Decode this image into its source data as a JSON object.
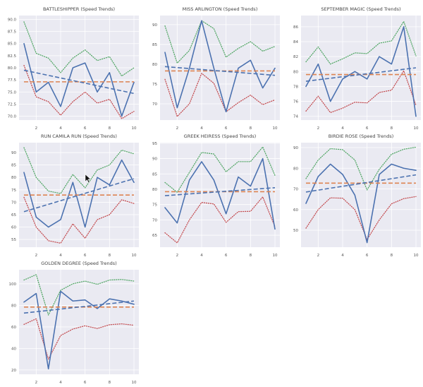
{
  "colors": {
    "speed": "#4c72b0",
    "mean": "#dd8452",
    "upper": "#55a868",
    "lower": "#c44e52",
    "trend": "#4c72b0",
    "plot_bg": "#eaeaf2",
    "grid": "#ffffff"
  },
  "chart_data": [
    {
      "type": "line",
      "title": "BATTLESHIPPER (Speed Trends)",
      "x": [
        1,
        2,
        3,
        4,
        5,
        6,
        7,
        8,
        9,
        10
      ],
      "xticks": [
        2,
        4,
        6,
        8,
        10
      ],
      "yticks": [
        "70.0",
        "72.5",
        "75.0",
        "77.5",
        "80.0",
        "82.5",
        "85.0",
        "87.5",
        "90.0"
      ],
      "ytick_values": [
        70,
        72.5,
        75,
        77.5,
        80,
        82.5,
        85,
        87.5,
        90
      ],
      "ylim": [
        69.2,
        90.8
      ],
      "series": [
        {
          "name": "speed",
          "values": [
            85,
            75,
            77,
            72,
            80,
            81,
            75,
            79,
            70,
            77
          ]
        },
        {
          "name": "upper",
          "values": [
            89.5,
            83,
            82,
            79,
            82,
            83.7,
            81.5,
            82.3,
            78.3,
            80
          ]
        },
        {
          "name": "lower",
          "values": [
            80.5,
            74,
            73,
            70.2,
            73,
            75,
            72.7,
            73.5,
            69.5,
            71
          ]
        }
      ],
      "mean": 77.1,
      "trend": [
        79.5,
        74.7
      ]
    },
    {
      "type": "line",
      "title": "MISS ARLINGTON (Speed Trends)",
      "x": [
        1,
        2,
        3,
        4,
        5,
        6,
        7,
        8,
        9,
        10
      ],
      "xticks": [
        2,
        4,
        6,
        8,
        10
      ],
      "yticks": [
        "70",
        "75",
        "80",
        "85",
        "90"
      ],
      "ytick_values": [
        70,
        75,
        80,
        85,
        90
      ],
      "ylim": [
        65.9,
        92.3
      ],
      "series": [
        {
          "name": "speed",
          "values": [
            83,
            69,
            79,
            91,
            79,
            68,
            79,
            81,
            74,
            79
          ]
        },
        {
          "name": "upper",
          "values": [
            89.7,
            80.3,
            83.5,
            91,
            89,
            81.8,
            84,
            85.7,
            83.3,
            84.5
          ]
        },
        {
          "name": "lower",
          "values": [
            76.2,
            66.8,
            70,
            77.7,
            75.2,
            68,
            70.3,
            72.2,
            69.8,
            71
          ]
        }
      ],
      "mean": 78.3,
      "trend": [
        79.4,
        77.2
      ]
    },
    {
      "type": "line",
      "title": "SEPTEMBER MAGIC (Speed Trends)",
      "x": [
        1,
        2,
        3,
        4,
        5,
        6,
        7,
        8,
        9,
        10
      ],
      "xticks": [
        2,
        4,
        6,
        8,
        10
      ],
      "yticks": [
        "74",
        "76",
        "78",
        "80",
        "82",
        "84",
        "86"
      ],
      "ytick_values": [
        74,
        76,
        78,
        80,
        82,
        84,
        86
      ],
      "ylim": [
        73.5,
        87.5
      ],
      "series": [
        {
          "name": "speed",
          "values": [
            78,
            81,
            76,
            79,
            80,
            79,
            82,
            81,
            86,
            74
          ]
        },
        {
          "name": "upper",
          "values": [
            81.3,
            83.3,
            81,
            81.7,
            82.5,
            82.4,
            83.8,
            84.1,
            86.7,
            82.1
          ]
        },
        {
          "name": "lower",
          "values": [
            74.7,
            76.7,
            74.5,
            75.1,
            75.9,
            75.8,
            77.2,
            77.5,
            80.1,
            75.5
          ]
        }
      ],
      "mean": 79.6,
      "trend": [
        78.7,
        80.5
      ]
    },
    {
      "type": "line",
      "title": "RUN CAMILA RUN (Speed Trends)",
      "x": [
        1,
        2,
        3,
        4,
        5,
        6,
        7,
        8,
        9,
        10
      ],
      "xticks": [
        2,
        4,
        6,
        8,
        10
      ],
      "yticks": [
        "55",
        "60",
        "65",
        "70",
        "75",
        "80",
        "85",
        "90"
      ],
      "ytick_values": [
        55,
        60,
        65,
        70,
        75,
        80,
        85,
        90
      ],
      "ylim": [
        51.9,
        94
      ],
      "series": [
        {
          "name": "speed",
          "values": [
            82,
            64,
            60,
            63,
            78,
            60,
            80,
            77,
            87,
            78
          ]
        },
        {
          "name": "upper",
          "values": [
            92,
            80,
            74.5,
            73.5,
            81.2,
            75.8,
            83,
            85,
            91,
            89.5
          ]
        },
        {
          "name": "lower",
          "values": [
            72,
            60,
            54.5,
            53.5,
            61.3,
            55.5,
            63,
            65,
            71,
            69.5
          ]
        }
      ],
      "mean": 72.9,
      "trend": [
        66.2,
        79.5
      ]
    },
    {
      "type": "line",
      "title": "GREEK HEIRESS (Speed Trends)",
      "x": [
        1,
        2,
        3,
        4,
        5,
        6,
        7,
        8,
        9,
        10
      ],
      "xticks": [
        2,
        4,
        6,
        8,
        10
      ],
      "yticks": [
        "65",
        "70",
        "75",
        "80",
        "85",
        "90",
        "95"
      ],
      "ytick_values": [
        65,
        70,
        75,
        80,
        85,
        90,
        95
      ],
      "ylim": [
        61.1,
        95.2
      ],
      "series": [
        {
          "name": "speed",
          "values": [
            74,
            69,
            83,
            89,
            83,
            72,
            84,
            81,
            90,
            67
          ]
        },
        {
          "name": "upper",
          "values": [
            82.2,
            79,
            85.5,
            92,
            91.5,
            85.7,
            89,
            89,
            93.8,
            84.5
          ]
        },
        {
          "name": "lower",
          "values": [
            65.8,
            62.5,
            70,
            75.7,
            75.2,
            69.2,
            72.7,
            72.8,
            77.5,
            67.8
          ]
        }
      ],
      "mean": 79.2,
      "trend": [
        77.9,
        80.5
      ]
    },
    {
      "type": "line",
      "title": "BIRDIE ROSE (Speed Trends)",
      "x": [
        1,
        2,
        3,
        4,
        5,
        6,
        7,
        8,
        9,
        10
      ],
      "xticks": [
        2,
        4,
        6,
        8,
        10
      ],
      "yticks": [
        "50",
        "60",
        "70",
        "80",
        "90"
      ],
      "ytick_values": [
        50,
        60,
        70,
        80,
        90
      ],
      "ylim": [
        41.8,
        92.4
      ],
      "series": [
        {
          "name": "speed",
          "values": [
            63,
            76,
            82,
            77,
            67,
            44,
            77,
            82,
            80,
            79
          ]
        },
        {
          "name": "upper",
          "values": [
            75,
            84,
            89.5,
            89,
            84,
            69.5,
            79.5,
            86.8,
            89.2,
            90.2
          ]
        },
        {
          "name": "lower",
          "values": [
            51,
            60,
            65.7,
            65.5,
            60,
            45.5,
            55,
            62.8,
            65.3,
            66.3
          ]
        }
      ],
      "mean": 72.8,
      "trend": [
        68.5,
        76.8
      ]
    },
    {
      "type": "line",
      "title": "GOLDEN DEGREE (Speed Trends)",
      "x": [
        1,
        2,
        3,
        4,
        5,
        6,
        7,
        8,
        9,
        10
      ],
      "xticks": [
        2,
        4,
        6,
        8,
        10
      ],
      "yticks": [
        "20",
        "40",
        "60",
        "80",
        "100"
      ],
      "ytick_values": [
        20,
        40,
        60,
        80,
        100
      ],
      "ylim": [
        16,
        113
      ],
      "series": [
        {
          "name": "speed",
          "values": [
            83,
            91,
            21,
            93,
            84,
            85,
            77,
            86,
            84,
            81
          ]
        },
        {
          "name": "upper",
          "values": [
            103.5,
            108.5,
            71,
            94,
            100,
            102.5,
            99.5,
            103.5,
            104,
            102.5
          ]
        },
        {
          "name": "lower",
          "values": [
            62.3,
            67.5,
            30,
            52,
            58,
            61,
            58.5,
            62,
            62.8,
            61.5
          ]
        }
      ],
      "mean": 78.4,
      "trend": [
        72.8,
        84
      ]
    }
  ]
}
